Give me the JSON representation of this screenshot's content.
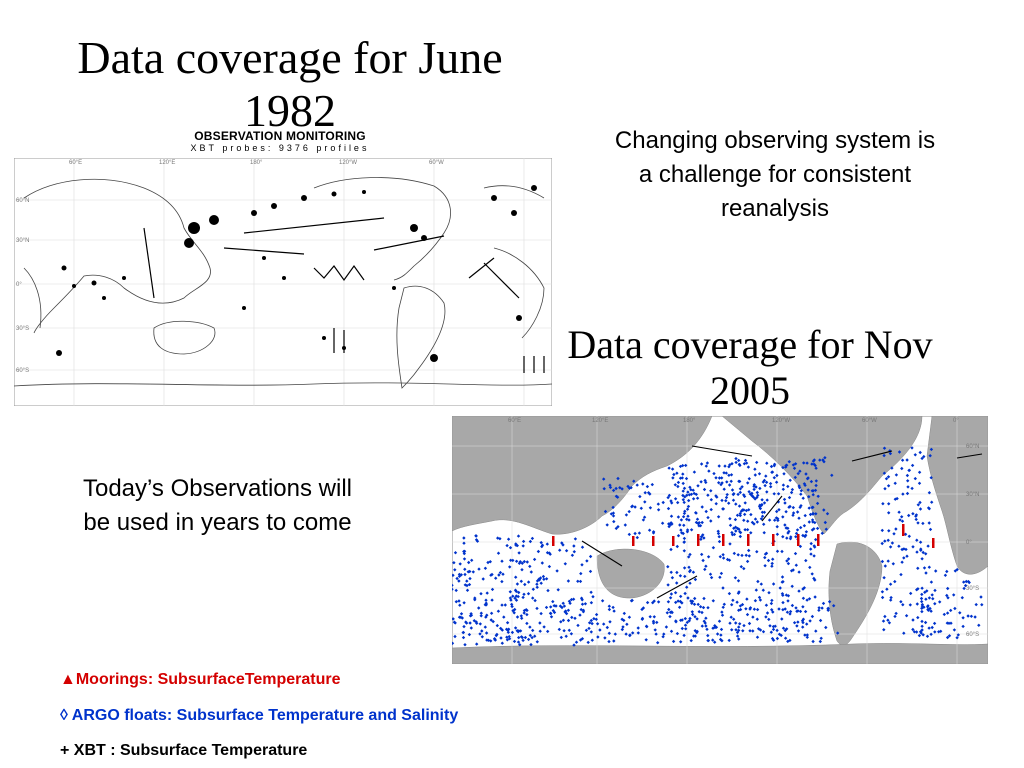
{
  "titles": {
    "june_1982": "Data coverage for June 1982",
    "nov_2005": "Data coverage for Nov 2005"
  },
  "notes": {
    "changing": "Changing observing system is a challenge for consistent reanalysis",
    "today": "Today’s Observations will be used in years to come"
  },
  "map_1982": {
    "header": "OBSERVATION MONITORING",
    "subheader": "XBT probes: 9376 profiles",
    "lon_ticks": [
      "60°E",
      "120°E",
      "180°",
      "120°W",
      "60°W"
    ],
    "lat_ticks": [
      "60°N",
      "30°N",
      "0°",
      "30°S",
      "60°S"
    ]
  },
  "map_2005": {
    "lon_ticks": [
      "60°E",
      "120°E",
      "180°",
      "120°W",
      "60°W",
      "0°"
    ],
    "lat_ticks": [
      "60°N",
      "30°N",
      "0°",
      "30°S",
      "60°S"
    ]
  },
  "legend": {
    "moorings": "▲Moorings: SubsurfaceTemperature",
    "argo": "◊ ARGO floats: Subsurface Temperature and  Salinity",
    "xbt": "+ XBT : Subsurface Temperature"
  },
  "colors": {
    "moorings": "#d40000",
    "argo": "#0033cc",
    "xbt": "#000000",
    "land_2005": "#a8a8a8"
  }
}
